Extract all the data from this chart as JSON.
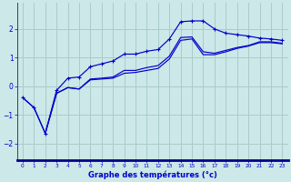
{
  "xlabel": "Graphe des températures (°c)",
  "background_color": "#cce8e8",
  "grid_color": "#aacccc",
  "line_color": "#0000cc",
  "axis_color": "#404040",
  "xlim": [
    -0.5,
    23.5
  ],
  "ylim": [
    -2.6,
    2.9
  ],
  "xticks": [
    0,
    1,
    2,
    3,
    4,
    5,
    6,
    7,
    8,
    9,
    10,
    11,
    12,
    13,
    14,
    15,
    16,
    17,
    18,
    19,
    20,
    21,
    22,
    23
  ],
  "yticks": [
    -2,
    -1,
    0,
    1,
    2
  ],
  "line1_x": [
    0,
    1,
    2,
    3,
    4,
    5,
    6,
    7,
    8,
    9,
    10,
    11,
    12,
    13,
    14,
    15,
    16,
    17,
    18,
    19,
    20,
    21,
    22,
    23
  ],
  "line1_y": [
    -0.4,
    -0.75,
    -1.65,
    -0.15,
    0.28,
    0.32,
    0.68,
    0.78,
    0.88,
    1.12,
    1.12,
    1.22,
    1.28,
    1.65,
    2.25,
    2.28,
    2.28,
    2.0,
    1.85,
    1.8,
    1.75,
    1.68,
    1.65,
    1.6
  ],
  "line2_x": [
    0,
    1,
    2,
    3,
    4,
    5,
    6,
    7,
    8,
    9,
    10,
    11,
    12,
    13,
    14,
    15,
    16,
    17,
    18,
    19,
    20,
    21,
    22,
    23
  ],
  "line2_y": [
    -0.4,
    -0.75,
    -1.65,
    -0.25,
    -0.05,
    -0.1,
    0.25,
    0.28,
    0.32,
    0.55,
    0.55,
    0.65,
    0.72,
    1.05,
    1.7,
    1.72,
    1.2,
    1.15,
    1.25,
    1.35,
    1.42,
    1.55,
    1.55,
    1.5
  ],
  "line3_x": [
    2,
    3,
    4,
    5,
    6,
    7,
    8,
    9,
    10,
    11,
    12,
    13,
    14,
    15,
    16,
    17,
    18,
    19,
    20,
    21,
    22,
    23
  ],
  "line3_y": [
    -1.65,
    -0.25,
    -0.05,
    -0.1,
    0.22,
    0.25,
    0.28,
    0.45,
    0.48,
    0.55,
    0.62,
    0.95,
    1.6,
    1.65,
    1.1,
    1.1,
    1.2,
    1.32,
    1.4,
    1.52,
    1.52,
    1.48
  ]
}
